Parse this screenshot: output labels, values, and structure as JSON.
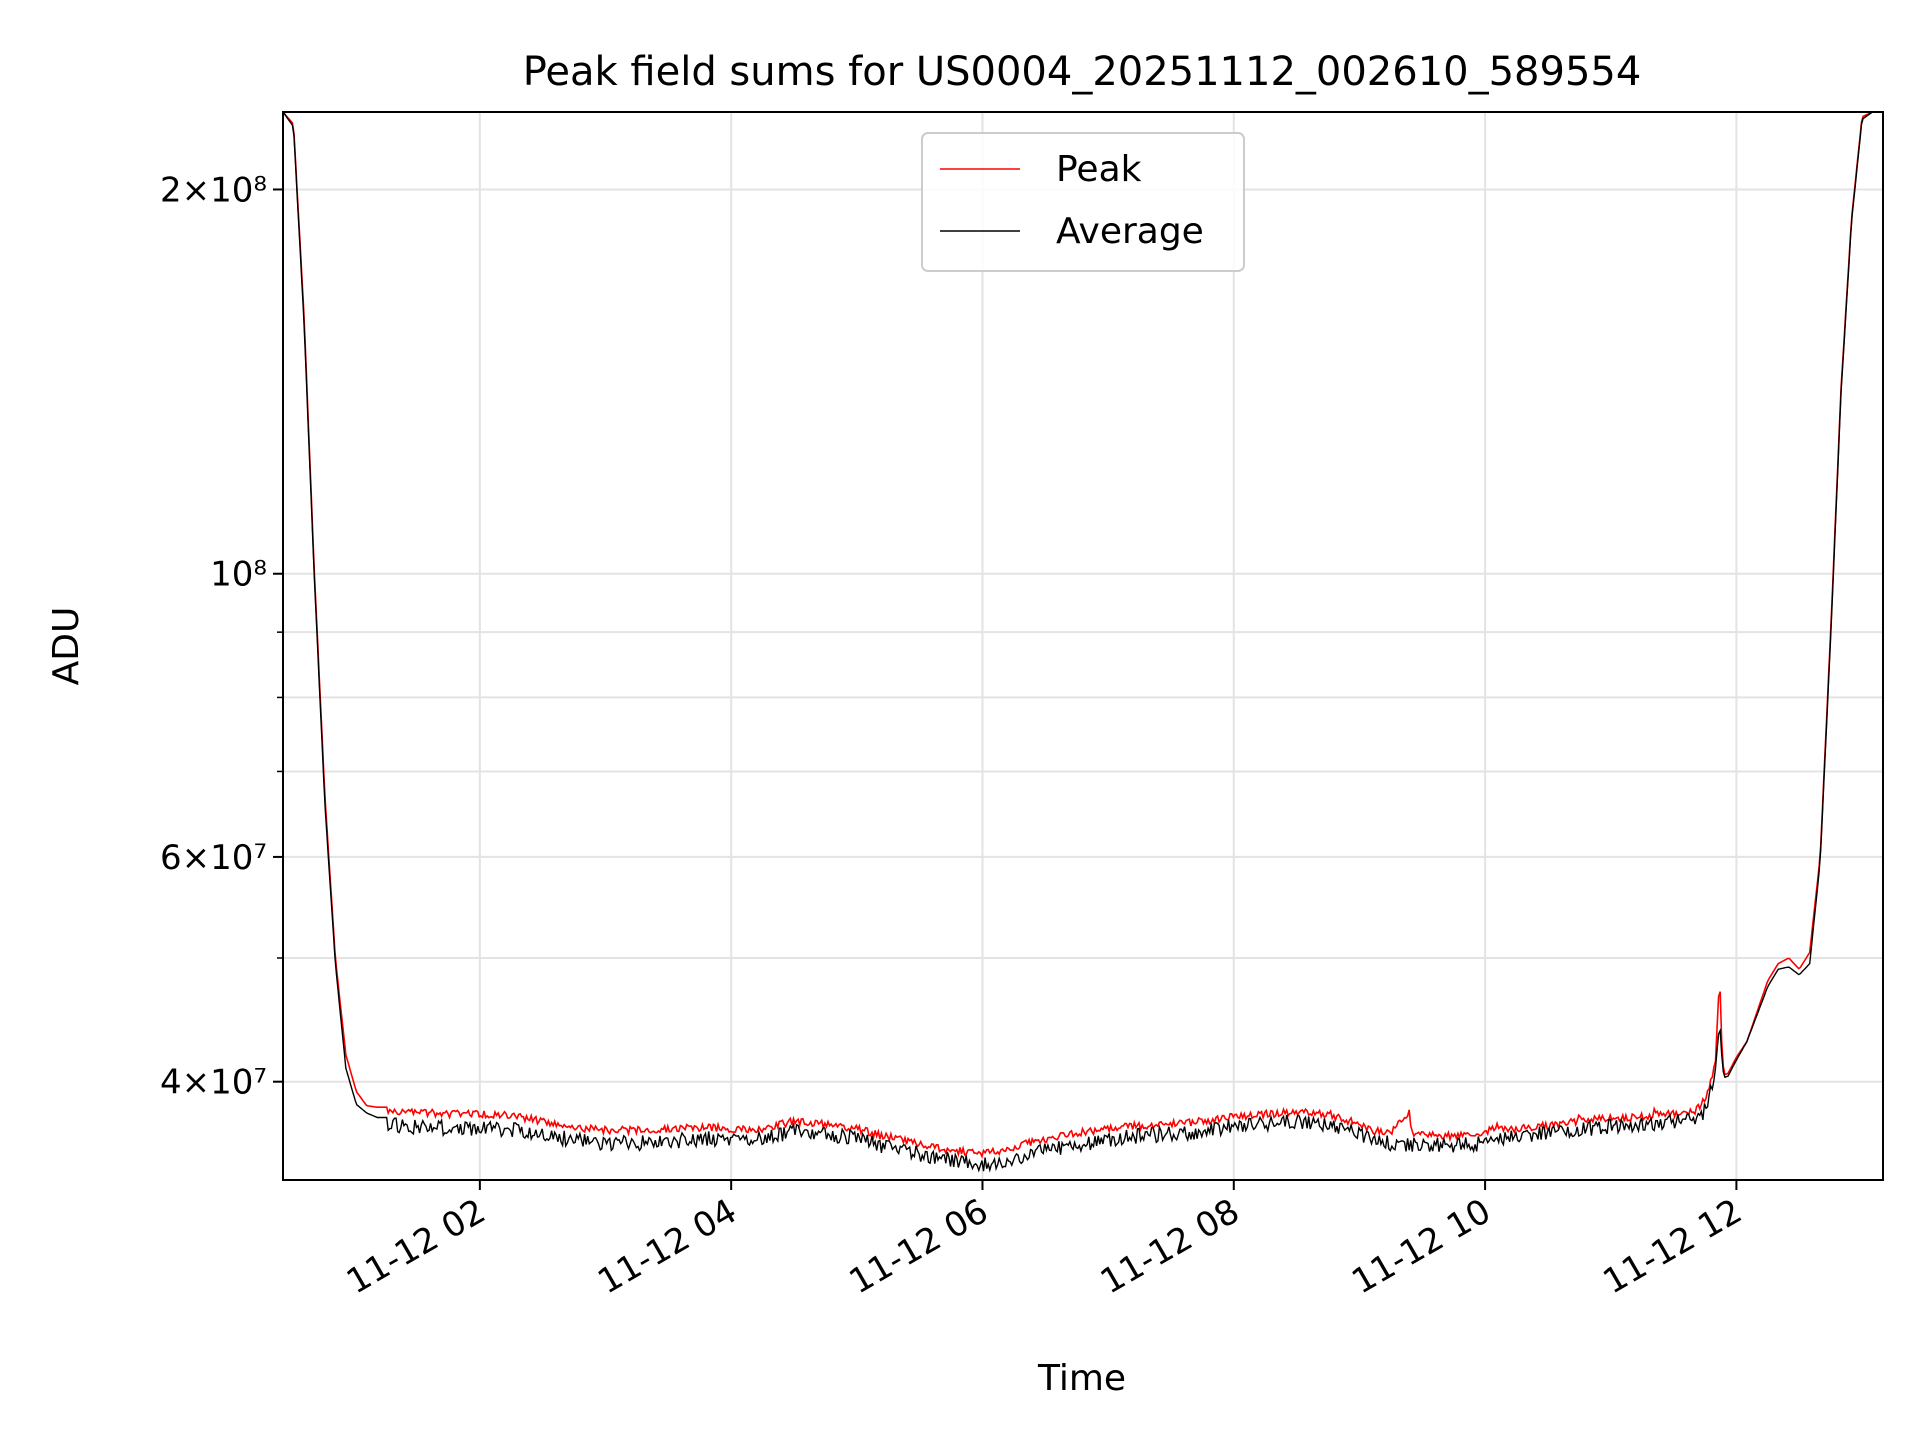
{
  "chart_data": {
    "type": "line",
    "title": "Peak field sums for US0004_20251112_002610_589554",
    "xlabel": "Time",
    "ylabel": "ADU",
    "yscale": "log",
    "xlim": [
      "2025-11-12 00:26",
      "2025-11-12 13:10"
    ],
    "ylim": [
      33500000,
      230000000
    ],
    "x_ticks": [
      "11-12 02",
      "11-12 04",
      "11-12 06",
      "11-12 08",
      "11-12 10",
      "11-12 12"
    ],
    "y_ticks": [
      {
        "value": 40000000,
        "label": "4×10⁷"
      },
      {
        "value": 60000000,
        "label": "6×10⁷"
      },
      {
        "value": 100000000,
        "label": "10⁸"
      },
      {
        "value": 200000000,
        "label": "2×10⁸"
      }
    ],
    "y_minor_ticks": [
      50000000,
      70000000,
      80000000,
      90000000
    ],
    "grid": true,
    "legend": "upper-center",
    "series": [
      {
        "name": "Peak",
        "color": "#ff0000",
        "x": [
          "00:26",
          "00:31",
          "00:36",
          "00:41",
          "00:46",
          "00:51",
          "00:56",
          "01:01",
          "01:06",
          "01:11",
          "01:16",
          "01:30",
          "01:45",
          "02:00",
          "02:15",
          "02:30",
          "02:45",
          "03:00",
          "03:15",
          "03:30",
          "03:45",
          "04:00",
          "04:15",
          "04:30",
          "04:45",
          "05:00",
          "05:10",
          "05:20",
          "05:30",
          "05:45",
          "06:00",
          "06:10",
          "06:20",
          "06:30",
          "06:45",
          "07:00",
          "07:15",
          "07:30",
          "07:45",
          "08:00",
          "08:15",
          "08:30",
          "08:45",
          "09:00",
          "09:05",
          "09:15",
          "09:24",
          "09:25",
          "09:26",
          "09:30",
          "09:45",
          "10:00",
          "10:05",
          "10:06",
          "10:07",
          "10:15",
          "10:30",
          "10:44",
          "10:45",
          "10:46",
          "11:00",
          "11:15",
          "11:20",
          "11:21",
          "11:22",
          "11:30",
          "11:40",
          "11:45",
          "11:50",
          "11:52",
          "11:53",
          "11:54",
          "11:56",
          "12:00",
          "12:05",
          "12:15",
          "12:20",
          "12:25",
          "12:30",
          "12:35",
          "12:40",
          "12:45",
          "12:50",
          "12:55",
          "13:00",
          "13:05",
          "13:10"
        ],
        "y": [
          230000000,
          225000000,
          160000000,
          100000000,
          67000000,
          50000000,
          42000000,
          39300000,
          38300000,
          38200000,
          38200000,
          38100000,
          38000000,
          38000000,
          37900000,
          37500000,
          37100000,
          36900000,
          36900000,
          37000000,
          37100000,
          37000000,
          37000000,
          37500000,
          37300000,
          37000000,
          36600000,
          36300000,
          36000000,
          35600000,
          35400000,
          35600000,
          36000000,
          36300000,
          36700000,
          37000000,
          37200000,
          37300000,
          37500000,
          37800000,
          38000000,
          38100000,
          38000000,
          37300000,
          36900000,
          36700000,
          38100000,
          36800000,
          36600000,
          36600000,
          36500000,
          36700000,
          37100000,
          37600000,
          36900000,
          37000000,
          37200000,
          37500000,
          37800000,
          37600000,
          37700000,
          37800000,
          37900000,
          38700000,
          38000000,
          38000000,
          38200000,
          39000000,
          41500000,
          48500000,
          43000000,
          40500000,
          40600000,
          41800000,
          43000000,
          48000000,
          49500000,
          50000000,
          49000000,
          50500000,
          60000000,
          90000000,
          140000000,
          190000000,
          228000000,
          230000000,
          230000000
        ]
      },
      {
        "name": "Average",
        "color": "#000000",
        "x": [
          "00:26",
          "00:31",
          "00:36",
          "00:41",
          "00:46",
          "00:51",
          "00:56",
          "01:01",
          "01:06",
          "01:11",
          "01:16",
          "01:30",
          "01:45",
          "02:00",
          "02:15",
          "02:30",
          "02:45",
          "03:00",
          "03:15",
          "03:30",
          "03:45",
          "04:00",
          "04:15",
          "04:30",
          "04:45",
          "05:00",
          "05:10",
          "05:20",
          "05:30",
          "05:45",
          "06:00",
          "06:10",
          "06:20",
          "06:30",
          "06:45",
          "07:00",
          "07:15",
          "07:30",
          "07:45",
          "08:00",
          "08:15",
          "08:30",
          "08:45",
          "09:00",
          "09:05",
          "09:15",
          "09:30",
          "09:45",
          "10:00",
          "10:15",
          "10:30",
          "10:45",
          "11:00",
          "11:15",
          "11:30",
          "11:40",
          "11:45",
          "11:50",
          "11:52",
          "11:53",
          "11:54",
          "11:56",
          "12:00",
          "12:05",
          "12:15",
          "12:20",
          "12:25",
          "12:30",
          "12:35",
          "12:40",
          "12:45",
          "12:50",
          "12:55",
          "13:00",
          "13:05",
          "13:10"
        ],
        "y": [
          230000000,
          224000000,
          158000000,
          99000000,
          66000000,
          49500000,
          41000000,
          38400000,
          37800000,
          37500000,
          37500000,
          37400000,
          37300000,
          37300000,
          37200000,
          36900000,
          36500000,
          36300000,
          36300000,
          36400000,
          36600000,
          36600000,
          36600000,
          37100000,
          36900000,
          36600000,
          36200000,
          35900000,
          35600000,
          35200000,
          34900000,
          35100000,
          35500000,
          35800000,
          36200000,
          36500000,
          36800000,
          36900000,
          37100000,
          37400000,
          37600000,
          37700000,
          37600000,
          36900000,
          36500000,
          36300000,
          36200000,
          36100000,
          36300000,
          36700000,
          37000000,
          37200000,
          37400000,
          37500000,
          37700000,
          37800000,
          38500000,
          41000000,
          44500000,
          42000000,
          40300000,
          40400000,
          41600000,
          43000000,
          47500000,
          49000000,
          49200000,
          48500000,
          49500000,
          59500000,
          89000000,
          139000000,
          189000000,
          227000000,
          230000000,
          230000000
        ]
      }
    ]
  }
}
